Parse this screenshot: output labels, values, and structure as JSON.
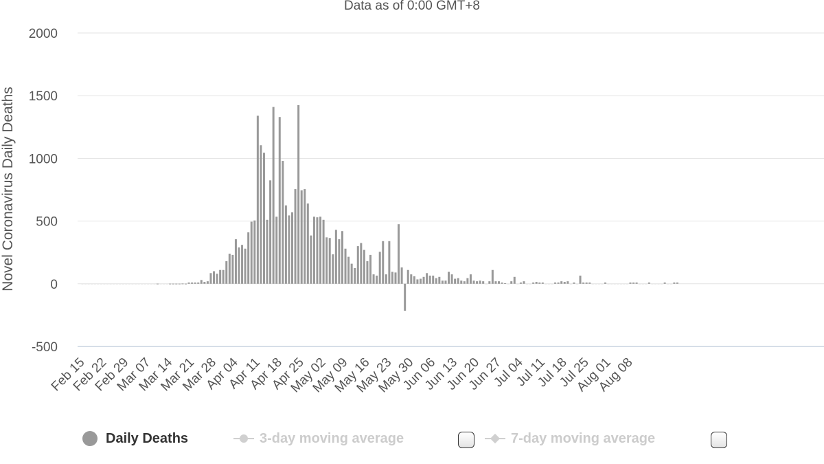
{
  "chart_data": {
    "type": "bar",
    "subtitle": "Data as of 0:00 GMT+8",
    "ylabel": "Novel Coronavirus Daily Deaths",
    "ylim": [
      -500,
      2000
    ],
    "yticks": [
      2000,
      1500,
      1000,
      500,
      0,
      -500
    ],
    "x_tick_labels": [
      "Feb 15",
      "Feb 22",
      "Feb 29",
      "Mar 07",
      "Mar 14",
      "Mar 21",
      "Mar 28",
      "Apr 04",
      "Apr 11",
      "Apr 18",
      "Apr 25",
      "May 02",
      "May 09",
      "May 16",
      "May 23",
      "May 30",
      "Jun 06",
      "Jun 13",
      "Jun 20",
      "Jun 27",
      "Jul 04",
      "Jul 11",
      "Jul 18",
      "Jul 25",
      "Aug 01",
      "Aug 08"
    ],
    "grid": true,
    "legend_position": "bottom",
    "color": "#999999",
    "series": [
      {
        "name": "Daily Deaths",
        "start_date": "2020-02-15",
        "values": [
          0,
          0,
          0,
          0,
          0,
          0,
          0,
          0,
          0,
          0,
          0,
          0,
          0,
          0,
          0,
          0,
          0,
          0,
          0,
          0,
          0,
          0,
          0,
          0,
          1,
          0,
          0,
          0,
          1,
          1,
          1,
          1,
          2,
          1,
          10,
          10,
          10,
          10,
          30,
          15,
          20,
          85,
          100,
          80,
          110,
          110,
          180,
          240,
          230,
          355,
          290,
          310,
          280,
          410,
          495,
          505,
          1340,
          1105,
          1045,
          510,
          825,
          1410,
          535,
          1330,
          980,
          625,
          545,
          570,
          755,
          1425,
          745,
          755,
          640,
          385,
          535,
          530,
          535,
          510,
          370,
          365,
          235,
          430,
          355,
          420,
          280,
          215,
          160,
          125,
          300,
          325,
          270,
          180,
          230,
          75,
          65,
          255,
          340,
          75,
          340,
          95,
          90,
          475,
          130,
          -215,
          110,
          75,
          60,
          35,
          40,
          55,
          85,
          65,
          65,
          45,
          55,
          25,
          25,
          95,
          75,
          40,
          45,
          25,
          20,
          45,
          75,
          25,
          20,
          25,
          20,
          0,
          20,
          110,
          20,
          20,
          10,
          5,
          0,
          20,
          55,
          0,
          10,
          20,
          0,
          0,
          10,
          15,
          10,
          10,
          0,
          0,
          0,
          10,
          10,
          20,
          15,
          20,
          0,
          10,
          0,
          65,
          10,
          10,
          10,
          0,
          0,
          0,
          0,
          10,
          0,
          0,
          0,
          0,
          0,
          0,
          0,
          10,
          10,
          10,
          0,
          0,
          0,
          10,
          0,
          0,
          0,
          0,
          10,
          0,
          0,
          10,
          10
        ]
      },
      {
        "name": "3-day moving average",
        "color": "#d0d0d0"
      },
      {
        "name": "7-day moving average",
        "color": "#d0d0d0"
      }
    ]
  }
}
